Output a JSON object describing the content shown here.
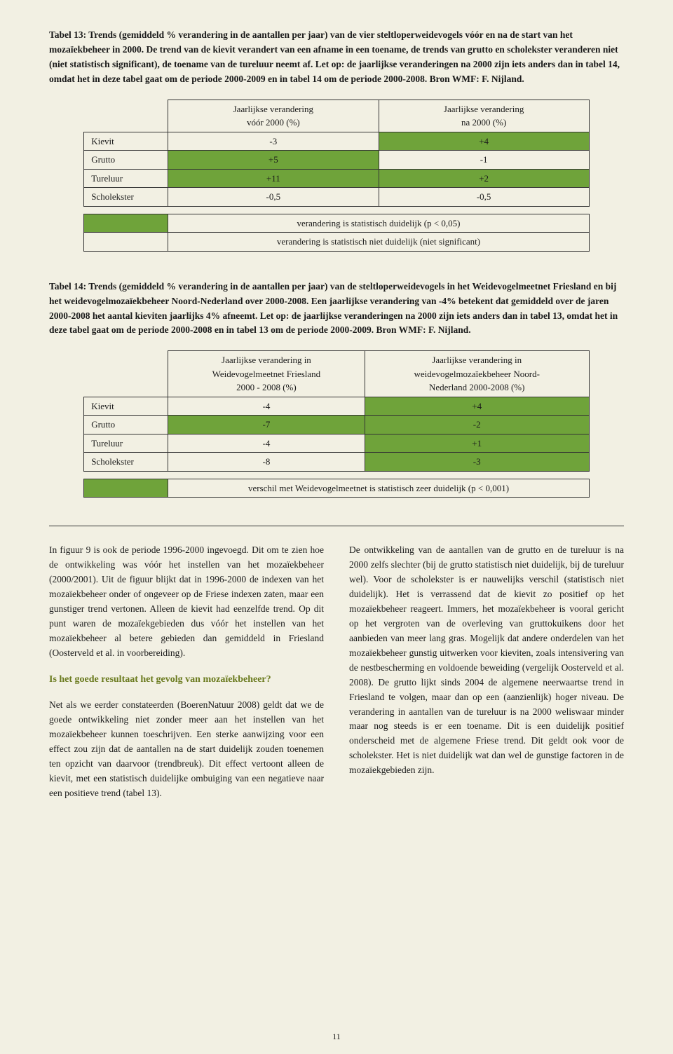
{
  "colors": {
    "page_bg": "#f2f0e3",
    "highlight": "#6fa33a",
    "subhead": "#6a7a1e",
    "text": "#1a1a1a",
    "border": "#333333"
  },
  "typography": {
    "body_family": "Georgia, serif",
    "body_size_pt": 10,
    "caption_weight": "bold",
    "subhead_size_pt": 11,
    "line_height": 1.55
  },
  "section1": {
    "caption": "Tabel 13: Trends (gemiddeld % verandering in de aantallen per jaar) van de vier steltloperweidevogels vóór en na de start van het mozaïekbeheer in 2000. De trend van de kievit verandert van een afname in een toename, de trends van grutto en scholekster veranderen niet (niet statistisch significant), de toename van de tureluur neemt af. Let op: de jaarlijkse veranderingen na 2000 zijn iets anders dan in tabel 14, omdat het in deze tabel gaat om de periode 2000-2009 en in tabel 14 om de periode 2000-2008. Bron WMF: F. Nijland.",
    "table": {
      "type": "table",
      "col_head_1a": "Jaarlijkse verandering",
      "col_head_1b": "vóór 2000 (%)",
      "col_head_2a": "Jaarlijkse verandering",
      "col_head_2b": "na 2000 (%)",
      "rows": [
        {
          "label": "Kievit",
          "c1": "-3",
          "c2": "+4",
          "hl1": false,
          "hl2": true
        },
        {
          "label": "Grutto",
          "c1": "+5",
          "c2": "-1",
          "hl1": true,
          "hl2": false
        },
        {
          "label": "Tureluur",
          "c1": "+11",
          "c2": "+2",
          "hl1": true,
          "hl2": true
        },
        {
          "label": "Scholekster",
          "c1": "-0,5",
          "c2": "-0,5",
          "hl1": false,
          "hl2": false
        }
      ]
    },
    "legend": {
      "r1": "verandering is statistisch duidelijk (p < 0,05)",
      "r2": "verandering is statistisch niet duidelijk (niet significant)"
    }
  },
  "section2": {
    "caption": "Tabel 14: Trends (gemiddeld % verandering in de aantallen per jaar) van de steltloperweidevogels in het Weidevogelmeetnet Friesland en bij het weidevogelmozaïekbeheer Noord-Nederland over 2000-2008. Een jaarlijkse verandering van -4% betekent dat gemiddeld over de jaren 2000-2008 het aantal kieviten jaarlijks 4% afneemt. Let op: de jaarlijkse veranderingen na 2000 zijn iets anders dan in tabel 13, omdat het in deze tabel gaat om de periode 2000-2008 en in tabel 13 om de periode 2000-2009. Bron WMF: F. Nijland.",
    "table": {
      "type": "table",
      "col_head_1a": "Jaarlijkse verandering in",
      "col_head_1b": "Weidevogelmeetnet Friesland",
      "col_head_1c": "2000 - 2008 (%)",
      "col_head_2a": "Jaarlijkse verandering in",
      "col_head_2b": "weidevogelmozaïekbeheer Noord-",
      "col_head_2c": "Nederland 2000-2008 (%)",
      "rows": [
        {
          "label": "Kievit",
          "c1": "-4",
          "c2": "+4",
          "hl1": false,
          "hl2": true
        },
        {
          "label": "Grutto",
          "c1": "-7",
          "c2": "-2",
          "hl1": true,
          "hl2": true
        },
        {
          "label": "Tureluur",
          "c1": "-4",
          "c2": "+1",
          "hl1": false,
          "hl2": true
        },
        {
          "label": "Scholekster",
          "c1": "-8",
          "c2": "-3",
          "hl1": false,
          "hl2": true
        }
      ]
    },
    "legend": {
      "r1": "verschil met Weidevogelmeetnet is statistisch zeer duidelijk (p < 0,001)"
    }
  },
  "body_text": {
    "left_p1": "In figuur 9 is ook de periode 1996-2000 ingevoegd. Dit om te zien hoe de ontwikkeling was vóór het instellen van het mozaïekbeheer (2000/2001). Uit de figuur blijkt dat in 1996-2000 de indexen van het mozaïekbeheer onder of ongeveer op de Friese indexen zaten, maar een gunstiger trend vertonen. Alleen de kievit had eenzelfde trend. Op dit punt waren de mozaïekgebieden dus vóór het instellen van het mozaïekbeheer al betere gebieden dan gemiddeld in Friesland (Oosterveld et al. in voorbereiding).",
    "left_sub": "Is het goede resultaat het gevolg van mozaïekbeheer?",
    "left_p2": "Net als we eerder constateerden (BoerenNatuur 2008) geldt dat we de goede ontwikkeling niet zonder meer aan het instellen van het mozaïekbeheer kunnen toeschrijven. Een sterke aanwijzing voor een effect zou zijn dat de aantallen na de start duidelijk zouden toenemen ten opzicht van daarvoor (trendbreuk). Dit effect vertoont alleen de kievit, met een statistisch duidelijke ombuiging van een negatieve naar een positieve trend (tabel 13).",
    "right_p1": "De ontwikkeling van de aantallen van de grutto en de tureluur is na 2000 zelfs slechter (bij de grutto statistisch niet duidelijk, bij de tureluur wel). Voor de scholekster is er nauwelijks verschil (statistisch niet duidelijk). Het is verrassend dat de kievit zo positief op het mozaïekbeheer reageert. Immers, het mozaïekbeheer is vooral gericht op het vergroten van de overleving van gruttokuikens door het aanbieden van meer lang gras. Mogelijk dat andere onderdelen van het mozaïekbeheer gunstig uitwerken voor kieviten, zoals intensivering van de nestbescherming en voldoende beweiding (vergelijk Oosterveld et al. 2008). De grutto lijkt sinds 2004 de algemene neerwaartse trend in Friesland te volgen, maar dan op een (aanzienlijk) hoger niveau. De verandering in aantallen van de tureluur is na 2000 weliswaar minder maar nog steeds is er een toename. Dit is een duidelijk positief onderscheid met de algemene Friese trend. Dit geldt ook voor de scholekster. Het is niet duidelijk wat dan wel de gunstige factoren in de mozaïekgebieden zijn."
  },
  "page_number": "11"
}
